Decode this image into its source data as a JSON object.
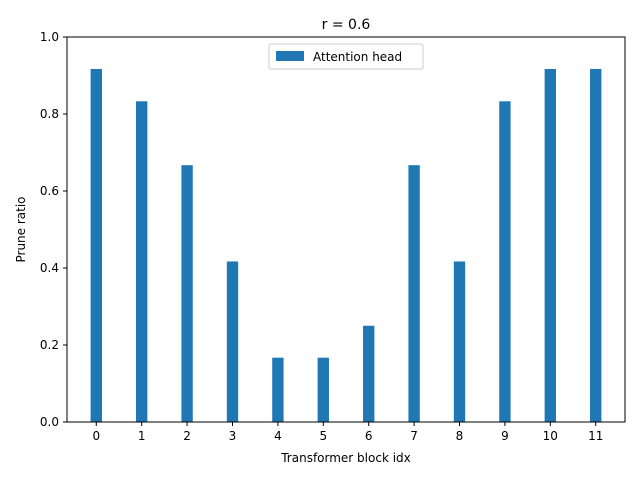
{
  "chart_data": {
    "type": "bar",
    "title": "r = 0.6",
    "xlabel": "Transformer block idx",
    "ylabel": "Prune ratio",
    "categories": [
      "0",
      "1",
      "2",
      "3",
      "4",
      "5",
      "6",
      "7",
      "8",
      "9",
      "10",
      "11"
    ],
    "series": [
      {
        "name": "Attention head",
        "color": "#1f77b4",
        "values": [
          0.917,
          0.833,
          0.667,
          0.417,
          0.167,
          0.167,
          0.25,
          0.667,
          0.417,
          0.833,
          0.917,
          0.917
        ]
      }
    ],
    "ylim": [
      0,
      1.0
    ],
    "yticks": [
      "0.0",
      "0.2",
      "0.4",
      "0.6",
      "0.8",
      "1.0"
    ],
    "grid": false,
    "legend_position": "upper center"
  }
}
